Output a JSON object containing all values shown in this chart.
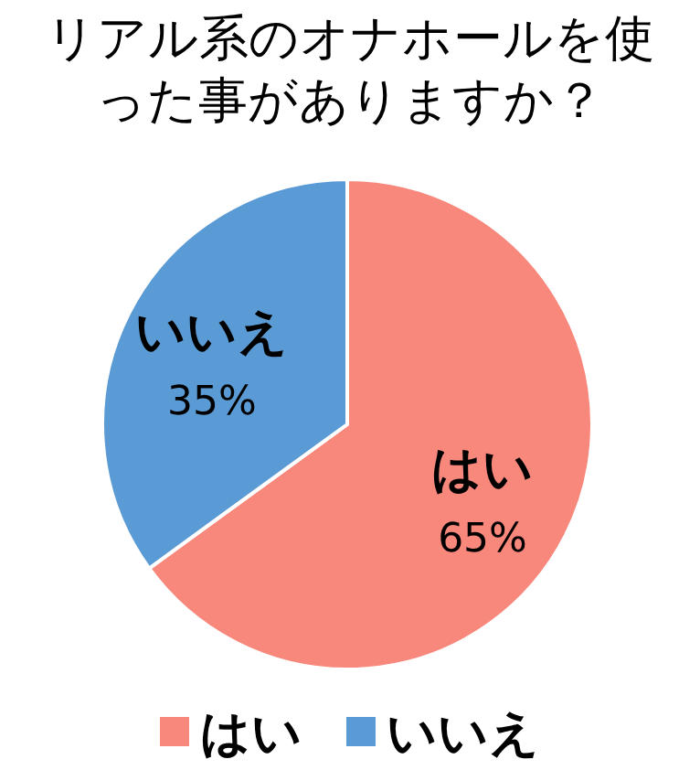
{
  "chart_data": {
    "type": "pie",
    "title": "リアル系のオナホールを使った事がありますか？",
    "categories": [
      "はい",
      "いいえ"
    ],
    "values": [
      65,
      35
    ],
    "colors": [
      "#f8877c",
      "#5b9bd5"
    ],
    "value_labels": [
      "65%",
      "35%"
    ],
    "legend": "bottom"
  }
}
